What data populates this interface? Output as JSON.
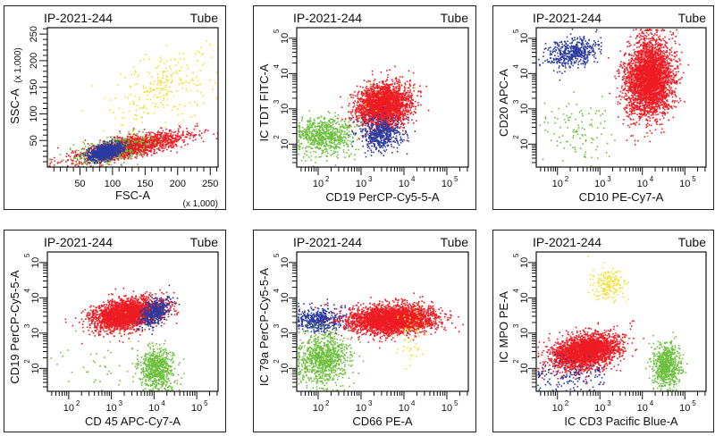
{
  "colors": {
    "red": "#ee1c24",
    "blue": "#2b3aa0",
    "green": "#6cc03c",
    "yellow": "#f2e030"
  },
  "chart_data": [
    {
      "type": "scatter",
      "title": "IP-2021-244",
      "tube_label": "Tube",
      "xlabel": "FSC-A",
      "ylabel": "SSC-A",
      "x_scale": "linear",
      "y_scale": "linear",
      "x_scale_note": "(x 1,000)",
      "y_scale_note": "(x 1,000)",
      "xlim": [
        0,
        262
      ],
      "ylim": [
        0,
        262
      ],
      "x_ticks": [
        50,
        100,
        150,
        200,
        250
      ],
      "y_ticks": [
        50,
        100,
        150,
        200,
        250
      ],
      "clusters": [
        {
          "color": "yellow",
          "n": 260,
          "cx": 175,
          "cy": 150,
          "sx": 35,
          "sy": 40,
          "rho": 0.4
        },
        {
          "color": "red",
          "n": 1400,
          "cx": 130,
          "cy": 40,
          "sx": 45,
          "sy": 14,
          "rho": 0.75
        },
        {
          "color": "red",
          "n": 900,
          "cx": 110,
          "cy": 35,
          "sx": 18,
          "sy": 9,
          "rho": 0.5
        },
        {
          "color": "green",
          "n": 350,
          "cx": 95,
          "cy": 32,
          "sx": 30,
          "sy": 14,
          "rho": 0.5
        },
        {
          "color": "blue",
          "n": 900,
          "cx": 88,
          "cy": 30,
          "sx": 13,
          "sy": 8,
          "rho": 0.5
        }
      ]
    },
    {
      "type": "scatter",
      "title": "IP-2021-244",
      "tube_label": "Tube",
      "xlabel": "CD19 PerCP-Cy5-5-A",
      "ylabel": "IC TDT FITC-A",
      "x_scale": "log",
      "y_scale": "log",
      "xlim": [
        1.5,
        5.5
      ],
      "ylim": [
        1.35,
        5.3
      ],
      "x_ticks": [
        2,
        3,
        4,
        5
      ],
      "y_ticks": [
        2,
        3,
        4,
        5
      ],
      "clusters": [
        {
          "color": "green",
          "n": 700,
          "cx": 2.15,
          "cy": 2.25,
          "sx": 0.35,
          "sy": 0.28,
          "rho": 0.0
        },
        {
          "color": "red",
          "n": 2600,
          "cx": 3.5,
          "cy": 3.1,
          "sx": 0.3,
          "sy": 0.3,
          "rho": 0.1
        },
        {
          "color": "blue",
          "n": 500,
          "cx": 3.45,
          "cy": 2.3,
          "sx": 0.25,
          "sy": 0.25,
          "rho": 0.0
        },
        {
          "color": "yellow",
          "n": 15,
          "cx": 3.3,
          "cy": 3.2,
          "sx": 0.35,
          "sy": 0.35,
          "rho": 0.0
        }
      ]
    },
    {
      "type": "scatter",
      "title": "IP-2021-244",
      "tube_label": "Tube",
      "xlabel": "CD10 PE-Cy7-A",
      "ylabel": "CD20 APC-A",
      "x_scale": "log",
      "y_scale": "log",
      "xlim": [
        1.5,
        5.5
      ],
      "ylim": [
        1.35,
        5.3
      ],
      "x_ticks": [
        2,
        3,
        4,
        5
      ],
      "y_ticks": [
        2,
        3,
        4,
        5
      ],
      "clusters": [
        {
          "color": "blue",
          "n": 500,
          "cx": 2.35,
          "cy": 4.6,
          "sx": 0.3,
          "sy": 0.22,
          "rho": 0.3
        },
        {
          "color": "red",
          "n": 3200,
          "cx": 4.15,
          "cy": 3.9,
          "sx": 0.28,
          "sy": 0.55,
          "rho": 0.1
        },
        {
          "color": "green",
          "n": 110,
          "cx": 2.5,
          "cy": 2.4,
          "sx": 0.5,
          "sy": 0.45,
          "rho": 0.0
        }
      ]
    },
    {
      "type": "scatter",
      "title": "IP-2021-244",
      "tube_label": "Tube",
      "xlabel": "CD 45 APC-Cy7-A",
      "ylabel": "CD19 PerCP-Cy5-5-A",
      "x_scale": "log",
      "y_scale": "log",
      "xlim": [
        1.5,
        5.5
      ],
      "ylim": [
        1.35,
        5.3
      ],
      "x_ticks": [
        2,
        3,
        4,
        5
      ],
      "y_ticks": [
        2,
        3,
        4,
        5
      ],
      "clusters": [
        {
          "color": "red",
          "n": 2600,
          "cx": 3.35,
          "cy": 3.55,
          "sx": 0.4,
          "sy": 0.22,
          "rho": 0.35
        },
        {
          "color": "blue",
          "n": 400,
          "cx": 4.0,
          "cy": 3.6,
          "sx": 0.18,
          "sy": 0.2,
          "rho": 0.5
        },
        {
          "color": "green",
          "n": 650,
          "cx": 4.05,
          "cy": 2.0,
          "sx": 0.2,
          "sy": 0.3,
          "rho": 0.0
        },
        {
          "color": "green",
          "n": 40,
          "cx": 2.8,
          "cy": 2.1,
          "sx": 0.6,
          "sy": 0.35,
          "rho": 0.0
        },
        {
          "color": "yellow",
          "n": 10,
          "cx": 3.4,
          "cy": 3.2,
          "sx": 0.3,
          "sy": 0.3,
          "rho": 0.0
        }
      ]
    },
    {
      "type": "scatter",
      "title": "IP-2021-244",
      "tube_label": "Tube",
      "xlabel": "CD66 PE-A",
      "ylabel": "IC 79a PerCP-Cy5-5-A",
      "x_scale": "log",
      "y_scale": "log",
      "xlim": [
        1.5,
        5.5
      ],
      "ylim": [
        1.35,
        5.3
      ],
      "x_ticks": [
        2,
        3,
        4,
        5
      ],
      "y_ticks": [
        2,
        3,
        4,
        5
      ],
      "clusters": [
        {
          "color": "blue",
          "n": 450,
          "cx": 2.05,
          "cy": 3.4,
          "sx": 0.3,
          "sy": 0.18,
          "rho": 0.0
        },
        {
          "color": "red",
          "n": 3000,
          "cx": 3.7,
          "cy": 3.4,
          "sx": 0.5,
          "sy": 0.2,
          "rho": 0.1
        },
        {
          "color": "green",
          "n": 900,
          "cx": 2.1,
          "cy": 2.3,
          "sx": 0.32,
          "sy": 0.38,
          "rho": 0.0
        },
        {
          "color": "yellow",
          "n": 60,
          "cx": 4.15,
          "cy": 3.1,
          "sx": 0.18,
          "sy": 0.45,
          "rho": 0.0
        }
      ]
    },
    {
      "type": "scatter",
      "title": "IP-2021-244",
      "tube_label": "Tube",
      "xlabel": "IC CD3 Pacific Blue-A",
      "ylabel": "IC MPO PE-A",
      "x_scale": "log",
      "y_scale": "log",
      "xlim": [
        1.5,
        5.5
      ],
      "ylim": [
        1.35,
        5.3
      ],
      "x_ticks": [
        2,
        3,
        4,
        5
      ],
      "y_ticks": [
        2,
        3,
        4,
        5
      ],
      "clusters": [
        {
          "color": "yellow",
          "n": 180,
          "cx": 3.15,
          "cy": 4.4,
          "sx": 0.2,
          "sy": 0.22,
          "rho": 0.0
        },
        {
          "color": "red",
          "n": 2600,
          "cx": 2.65,
          "cy": 2.5,
          "sx": 0.4,
          "sy": 0.25,
          "rho": 0.3
        },
        {
          "color": "blue",
          "n": 140,
          "cx": 2.3,
          "cy": 1.8,
          "sx": 0.45,
          "sy": 0.25,
          "rho": 0.0
        },
        {
          "color": "green",
          "n": 650,
          "cx": 4.55,
          "cy": 2.1,
          "sx": 0.16,
          "sy": 0.32,
          "rho": 0.0
        }
      ]
    }
  ]
}
